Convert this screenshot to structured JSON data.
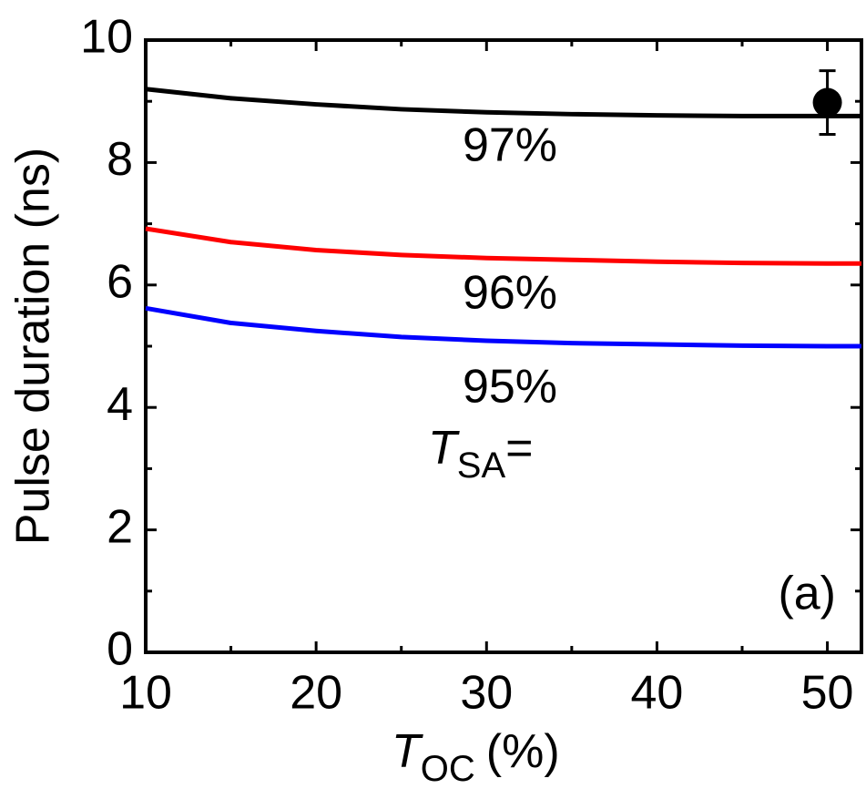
{
  "chart_data": {
    "type": "line",
    "xlabel": {
      "symbol": "T",
      "subscript": "OC",
      "suffix": "(%)"
    },
    "ylabel": "Pulse duration (ns)",
    "x": [
      10,
      15,
      20,
      25,
      30,
      35,
      40,
      45,
      50,
      52
    ],
    "series": [
      {
        "name": "97%",
        "color": "#000000",
        "values": [
          9.2,
          9.05,
          8.95,
          8.87,
          8.82,
          8.79,
          8.77,
          8.76,
          8.76,
          8.76
        ]
      },
      {
        "name": "96%",
        "color": "#ff0000",
        "values": [
          6.92,
          6.7,
          6.57,
          6.49,
          6.44,
          6.41,
          6.38,
          6.36,
          6.35,
          6.35
        ]
      },
      {
        "name": "95%",
        "color": "#0000ff",
        "values": [
          5.62,
          5.38,
          5.25,
          5.15,
          5.09,
          5.05,
          5.03,
          5.01,
          5.0,
          5.0
        ]
      }
    ],
    "points": {
      "color": "#000000",
      "x": [
        50
      ],
      "values": [
        8.98
      ],
      "errors": [
        0.52
      ]
    },
    "annotations": [
      {
        "symbol": "T",
        "subscript": "SA",
        "suffix": "="
      },
      "(a)"
    ],
    "xlim": [
      10,
      52
    ],
    "xticks": [
      10,
      20,
      30,
      40,
      50
    ],
    "xminor": [
      15,
      25,
      35,
      45
    ],
    "ylim": [
      0,
      10
    ],
    "yticks": [
      0,
      2,
      4,
      6,
      8,
      10
    ],
    "yminor": [
      1,
      3,
      5,
      7,
      9
    ],
    "grid": false
  }
}
